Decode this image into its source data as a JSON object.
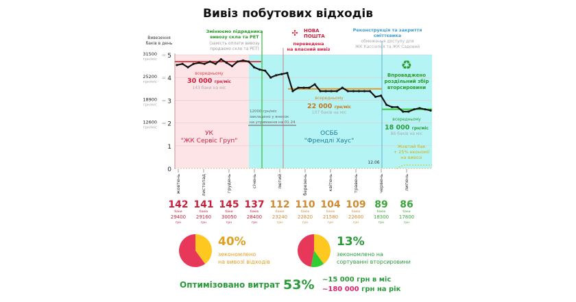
{
  "title": "Вивіз побутових відходів",
  "chart_data": {
    "type": "line",
    "ylabel": "Вивезення баків в день",
    "ylim": [
      0,
      5
    ],
    "y_ticks": [
      0,
      1,
      2,
      3,
      4,
      5
    ],
    "y_money_ticks": [
      {
        "y": 5,
        "label": "31500",
        "unit": "грн/міс"
      },
      {
        "y": 4,
        "label": "25200",
        "unit": "грн/міс"
      },
      {
        "y": 3,
        "label": "18900",
        "unit": "грн/міс"
      },
      {
        "y": 2,
        "label": "12600",
        "unit": "грн/міс"
      }
    ],
    "months": [
      "жовтень",
      "листопад",
      "грудень",
      "січень",
      "лютий",
      "березень",
      "квітень",
      "травень",
      "червень",
      "липень"
    ],
    "grid": true,
    "series": [
      {
        "values": [
          4.55,
          4.6,
          4.45,
          4.6,
          4.65,
          4.6,
          4.7,
          4.6,
          4.8,
          4.65,
          4.5,
          4.7,
          4.75,
          4.7,
          4.45,
          4.35,
          4.3,
          4.0,
          4.1,
          4.15,
          4.2,
          3.4,
          3.55,
          3.55,
          3.55,
          3.7,
          3.4,
          3.4,
          3.4,
          3.4,
          3.55,
          3.4,
          3.4,
          3.4,
          3.4,
          3.4,
          3.15,
          3.2,
          2.8,
          2.7,
          2.7,
          2.5,
          2.5,
          2.6,
          2.65,
          2.6,
          2.55
        ],
        "color": "#111111"
      }
    ],
    "averages": [
      {
        "value": 4.7,
        "color": "#e0404a",
        "label": "всередньому",
        "amount": "30 000",
        "unit": "грн/міс",
        "sub": "143 баки на міс"
      },
      {
        "value": 3.5,
        "color": "#e09a30",
        "label": "всередньому",
        "amount": "22 000",
        "unit": "грн/міс",
        "sub": "107 баків на міс"
      },
      {
        "value": 2.6,
        "color": "#33cc33",
        "label": "всередньому",
        "amount": "18 000",
        "unit": "грн/міс",
        "sub": "86 баків на міс"
      }
    ],
    "regions": [
      {
        "label": "УК",
        "name": "\"ЖК Сервіс Груп\"",
        "color": "#fde4e7"
      },
      {
        "label": "ОСББ",
        "name": "\"Френдлі Хаус\"",
        "color": "#b5f4f4"
      }
    ],
    "events": [
      {
        "title": "Змінюємо підрядника вивозу скла та РЕТ",
        "note": "(замість оплати вивозу продаємо скло та РЕТ)",
        "color": "#2a9a2a"
      },
      {
        "brand": "НОВА ПОШТА",
        "title": "переведена на власний вивіз",
        "color": "#d02040"
      },
      {
        "title": "Реконструкція та закриття сміттєвика",
        "note": "обмеження доступу для ЖК Кассіопея та ЖК Садовий",
        "color": "#3a9ad0"
      },
      {
        "title": "Впроваджено роздільний збір вторсировини",
        "color": "#2a9a2a",
        "icon": "recycle-icon"
      }
    ],
    "annotation": {
      "lines": [
        "12000 грн/міс",
        "закладено у внесок",
        "на утримання на 01.24"
      ]
    },
    "date_label": "12.06",
    "yellow_bin": {
      "lines": [
        "Жовтий бак",
        "+ 25% економії",
        "на вивозі"
      ],
      "color": "#c8b020"
    }
  },
  "monthly": [
    {
      "count": "142",
      "unit": "баки",
      "cost": "29400",
      "cur": "грн",
      "color": "#c8203a"
    },
    {
      "count": "141",
      "unit": "баків",
      "cost": "29160",
      "cur": "грн",
      "color": "#c8203a"
    },
    {
      "count": "145",
      "unit": "баки",
      "cost": "30050",
      "cur": "грн",
      "color": "#c8203a"
    },
    {
      "count": "137",
      "unit": "баків",
      "cost": "28400",
      "cur": "грн",
      "color": "#c8203a"
    },
    {
      "count": "112",
      "unit": "баків",
      "cost": "23240",
      "cur": "грн",
      "color": "#d08a30"
    },
    {
      "count": "110",
      "unit": "баків",
      "cost": "22820",
      "cur": "грн",
      "color": "#d08a30"
    },
    {
      "count": "104",
      "unit": "баків",
      "cost": "21580",
      "cur": "грн",
      "color": "#d08a30"
    },
    {
      "count": "109",
      "unit": "баків",
      "cost": "22600",
      "cur": "грн",
      "color": "#d08a30"
    },
    {
      "count": "89",
      "unit": "баків",
      "cost": "18300",
      "cur": "грн",
      "color": "#3aa63a"
    },
    {
      "count": "86",
      "unit": "баки",
      "cost": "17800",
      "cur": "грн",
      "color": "#3aa63a"
    }
  ],
  "pies": [
    {
      "pct": "40%",
      "l1": "зекономлено",
      "l2": "на вивозі відходів",
      "color": "#e0a020",
      "slices": [
        {
          "v": 60,
          "c": "#e8385a"
        },
        {
          "v": 40,
          "c": "#ffc820"
        }
      ]
    },
    {
      "pct": "13%",
      "l1": "зекономлено на",
      "l2": "сортуванні вторсировини",
      "color": "#2a9a3a",
      "slices": [
        {
          "v": 47,
          "c": "#e8385a"
        },
        {
          "v": 40,
          "c": "#ffc820"
        },
        {
          "v": 13,
          "c": "#33cc33"
        }
      ]
    }
  ],
  "summary": {
    "label": "Оптимізовано витрат",
    "pct": "53%",
    "l1": "~15 000 грн в міс",
    "l2a": "~180 000",
    "l2b": "грн на рік"
  }
}
